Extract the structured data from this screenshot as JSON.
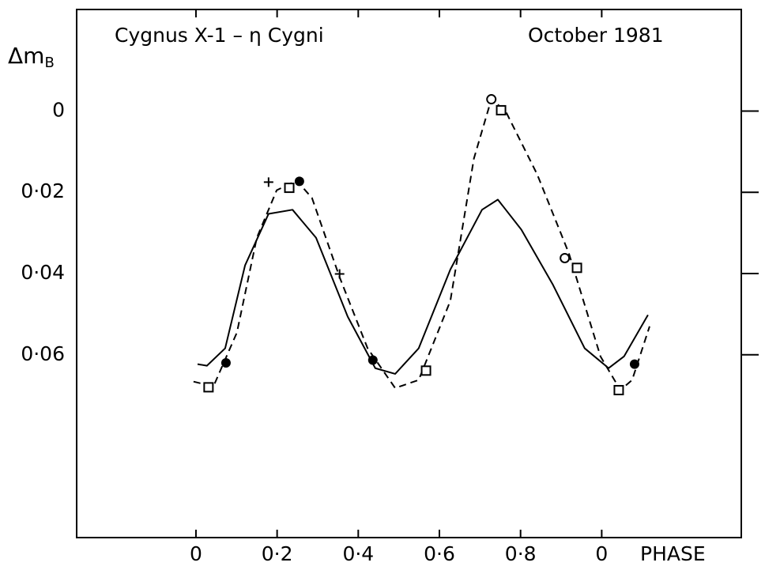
{
  "chart_data": {
    "type": "scatter",
    "title": "Cygnus X-1 – η Cygni",
    "subtitle": "October 1981",
    "ylabel": "Δm",
    "ylabel_sub": "B",
    "xlabel": "PHASE",
    "xlim": [
      -0.294,
      1.344
    ],
    "ylim": [
      0.105,
      -0.025
    ],
    "xticks": [
      0,
      {
        "value": 0.2,
        "label": "0·2"
      },
      {
        "value": 0.4,
        "label": "0·4"
      },
      {
        "value": 0.6,
        "label": "0·6"
      },
      {
        "value": 0.8,
        "label": "0·8"
      },
      {
        "value": 1,
        "label": "0"
      }
    ],
    "yticks": [
      0,
      {
        "value": 0.02,
        "label": "0·02"
      },
      {
        "value": 0.04,
        "label": "0·04"
      },
      {
        "value": 0.06,
        "label": "0·06"
      }
    ],
    "series": [
      {
        "marker": "filled-circle",
        "color": "#000000",
        "x": [
          0.074,
          0.255,
          0.436,
          1.081
        ],
        "values": [
          0.062,
          0.0173,
          0.0613,
          0.0623
        ]
      },
      {
        "marker": "open-square",
        "color": "#000000",
        "x": [
          0.031,
          0.23,
          0.567,
          0.752,
          0.939,
          1.042
        ],
        "values": [
          0.068,
          0.0189,
          0.0639,
          -0.0002,
          0.0386,
          0.0687
        ]
      },
      {
        "marker": "open-circle",
        "color": "#000000",
        "x": [
          0.728,
          0.909
        ],
        "values": [
          -0.0029,
          0.0362
        ]
      },
      {
        "marker": "plus",
        "color": "#000000",
        "x": [
          0.179,
          0.354
        ],
        "values": [
          0.0175,
          0.0401
        ]
      },
      {
        "style": "solid",
        "color": "#000000",
        "x": [
          0.004,
          0.027,
          0.072,
          0.121,
          0.179,
          0.238,
          0.296,
          0.374,
          0.442,
          0.491,
          0.549,
          0.627,
          0.705,
          0.744,
          0.802,
          0.88,
          0.958,
          1.017,
          1.055,
          1.114
        ],
        "values": [
          0.0623,
          0.0627,
          0.0584,
          0.038,
          0.0253,
          0.0243,
          0.0312,
          0.0506,
          0.0633,
          0.0647,
          0.0584,
          0.039,
          0.0243,
          0.0218,
          0.0292,
          0.0428,
          0.0584,
          0.0633,
          0.0604,
          0.0502
        ]
      },
      {
        "style": "dashed",
        "color": "#000000",
        "x": [
          -0.006,
          0.043,
          0.101,
          0.15,
          0.199,
          0.248,
          0.286,
          0.354,
          0.423,
          0.491,
          0.549,
          0.627,
          0.685,
          0.728,
          0.763,
          0.841,
          0.919,
          0.997,
          1.046,
          1.075,
          1.118
        ],
        "values": [
          0.0666,
          0.0678,
          0.0545,
          0.0312,
          0.0195,
          0.0171,
          0.0214,
          0.0409,
          0.0584,
          0.0682,
          0.0662,
          0.0467,
          0.0117,
          -0.0029,
          0,
          0.0156,
          0.035,
          0.0604,
          0.0687,
          0.0662,
          0.053
        ]
      }
    ]
  }
}
